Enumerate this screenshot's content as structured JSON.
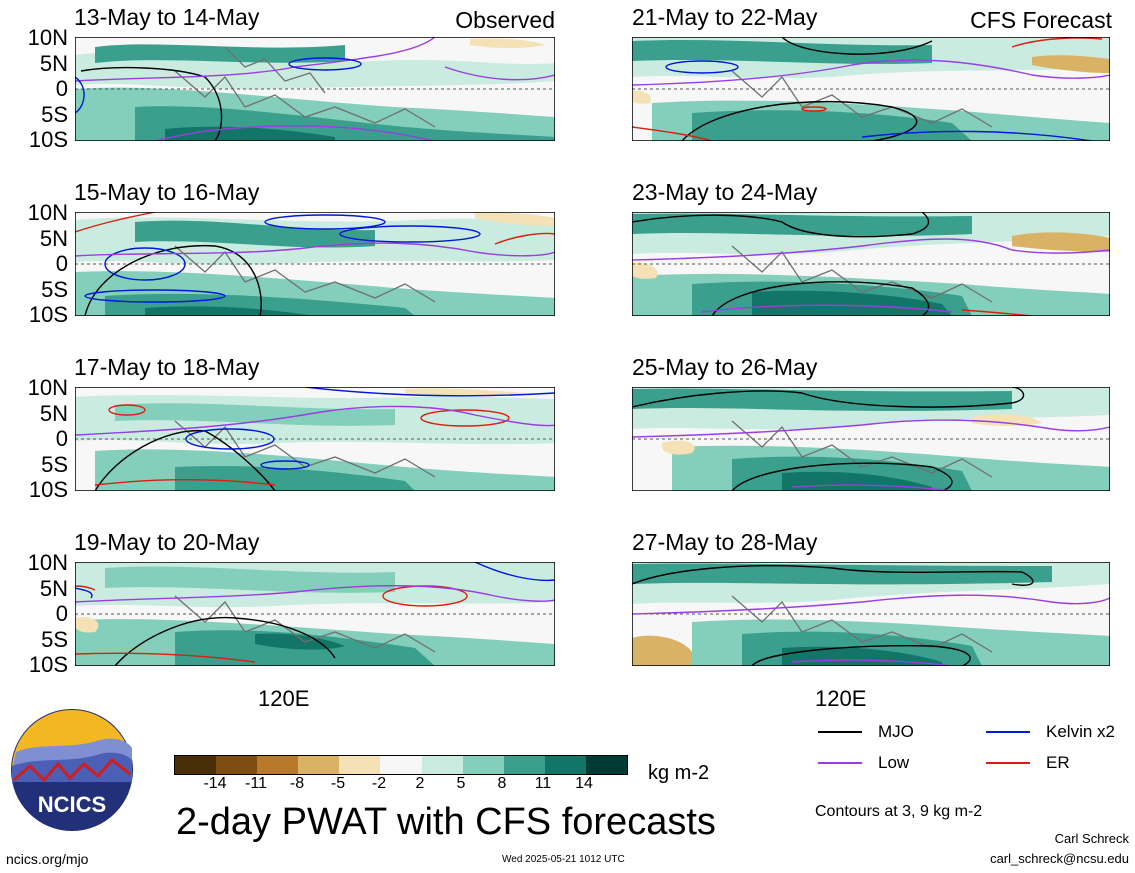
{
  "panels": [
    {
      "title": "13-May to 14-May",
      "source": "Observed"
    },
    {
      "title": "15-May to 16-May",
      "source": ""
    },
    {
      "title": "17-May to 18-May",
      "source": ""
    },
    {
      "title": "19-May to 20-May",
      "source": ""
    },
    {
      "title": "21-May to 22-May",
      "source": "CFS Forecast"
    },
    {
      "title": "23-May to 24-May",
      "source": ""
    },
    {
      "title": "25-May to 26-May",
      "source": ""
    },
    {
      "title": "27-May to 28-May",
      "source": ""
    }
  ],
  "lat_labels": [
    "10N",
    "5N",
    "0",
    "5S",
    "10S"
  ],
  "lon_label": "120E",
  "colorbar": {
    "labels": [
      "-14",
      "-11",
      "-8",
      "-5",
      "-2",
      "2",
      "5",
      "8",
      "11",
      "14"
    ],
    "colors": [
      "#4a2e08",
      "#7f4d12",
      "#b9792a",
      "#d9b266",
      "#f4e2b6",
      "#f7f7f7",
      "#c9ebe0",
      "#83cfbb",
      "#3b9f8d",
      "#137567",
      "#013b33"
    ],
    "units": "kg m-2"
  },
  "title": "2-day PWAT with CFS forecasts",
  "logo_text": "NCICS",
  "url": "ncics.org/mjo",
  "timestamp": "Wed 2025-05-21 1012 UTC",
  "legend": [
    {
      "label": "MJO",
      "color": "#000000"
    },
    {
      "label": "Kelvin x2",
      "color": "#0018d8"
    },
    {
      "label": "Low",
      "color": "#9a3ee0"
    },
    {
      "label": "ER",
      "color": "#d8200c"
    }
  ],
  "contours_note": "Contours at 3, 9 kg m-2",
  "author": "Carl Schreck",
  "email": "carl_schreck@ncsu.edu"
}
